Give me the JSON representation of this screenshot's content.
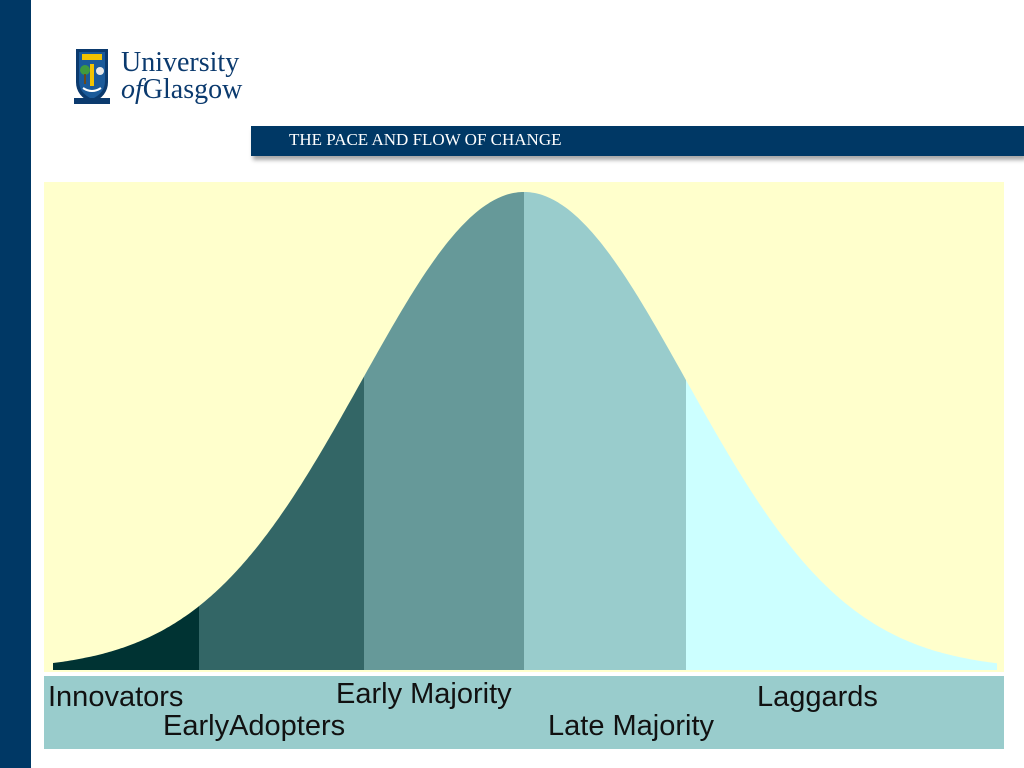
{
  "header": {
    "logo_line1": "University",
    "logo_of": "of",
    "logo_line2": "Glasgow",
    "title": "THE PACE AND FLOW OF CHANGE"
  },
  "chart_data": {
    "type": "area",
    "title": "",
    "segments": [
      {
        "label": "Innovators",
        "color": "#003333"
      },
      {
        "label": "EarlyAdopters",
        "color": "#336666"
      },
      {
        "label": "Early Majority",
        "color": "#669999"
      },
      {
        "label": "Late Majority",
        "color": "#99cccc"
      },
      {
        "label": "Laggards",
        "color": "#ccffff"
      }
    ],
    "background": "#ffffcc",
    "label_strip_color": "#99cccc"
  },
  "colors": {
    "brand": "#003865"
  }
}
